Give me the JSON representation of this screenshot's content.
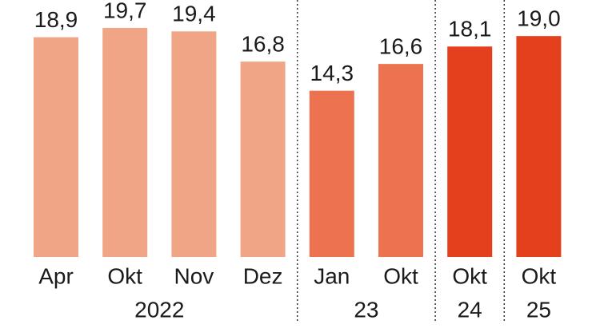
{
  "chart_data": {
    "type": "bar",
    "groups": [
      {
        "name": "2022",
        "color": "#f0a686",
        "categories": [
          "Apr",
          "Okt",
          "Nov",
          "Dez"
        ],
        "values": [
          18.9,
          19.7,
          19.4,
          16.8
        ],
        "value_labels": [
          "18,9",
          "19,7",
          "19,4",
          "16,8"
        ]
      },
      {
        "name": "23",
        "color": "#ec7250",
        "categories": [
          "Jan",
          "Okt"
        ],
        "values": [
          14.3,
          16.6
        ],
        "value_labels": [
          "14,3",
          "16,6"
        ]
      },
      {
        "name": "24",
        "color": "#e5401d",
        "categories": [
          "Okt"
        ],
        "values": [
          18.1
        ],
        "value_labels": [
          "18,1"
        ]
      },
      {
        "name": "25",
        "color": "#e5401d",
        "categories": [
          "Okt"
        ],
        "values": [
          19.0
        ],
        "value_labels": [
          "19,0"
        ]
      }
    ]
  }
}
